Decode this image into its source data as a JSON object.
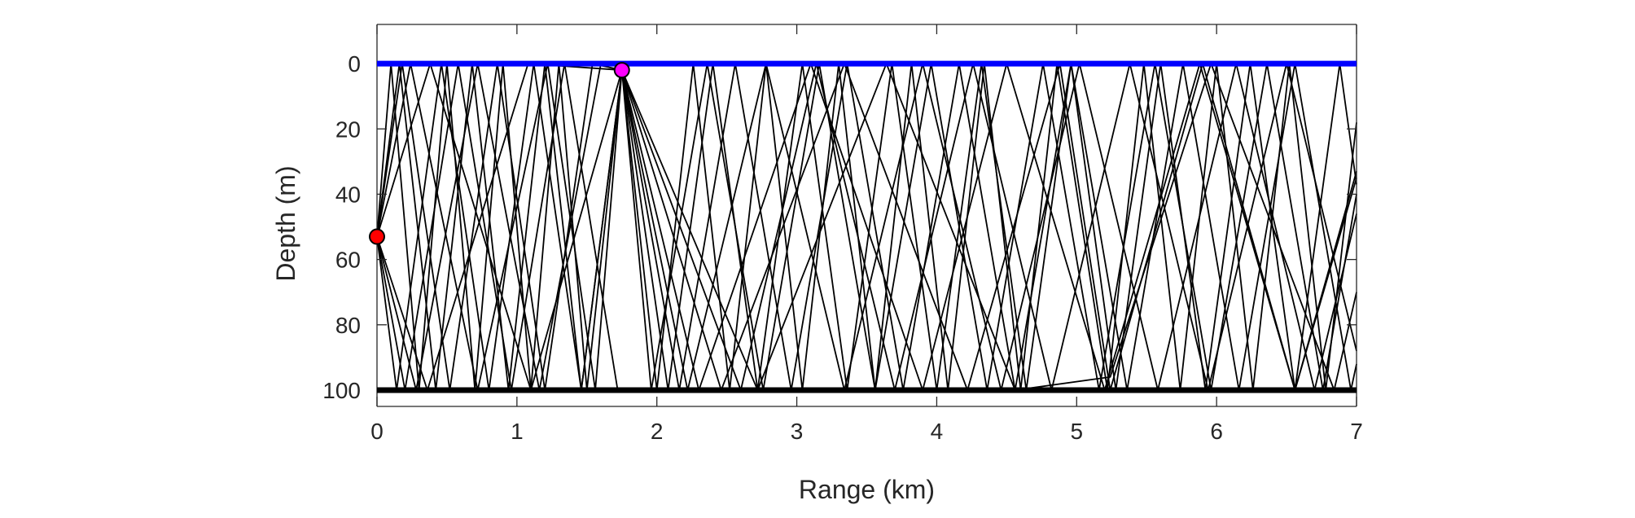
{
  "chart_data": {
    "type": "line",
    "title": "",
    "xlabel": "Range (km)",
    "ylabel": "Depth (m)",
    "xlim": [
      0,
      7
    ],
    "ylim": [
      -12,
      105
    ],
    "y_reversed": true,
    "grid": false,
    "x_ticks": [
      0,
      1,
      2,
      3,
      4,
      5,
      6,
      7
    ],
    "x_tick_labels": [
      "0",
      "1",
      "2",
      "3",
      "4",
      "5",
      "6",
      "7"
    ],
    "y_ticks": [
      0,
      20,
      40,
      60,
      80,
      100
    ],
    "y_tick_labels": [
      "0",
      "20",
      "40",
      "60",
      "80",
      "100"
    ],
    "colors": {
      "surface": "#0000ff",
      "bottom": "#000000",
      "rays": "#000000",
      "source_marker": "#ff0000",
      "receiver_marker": "#ff00ff"
    },
    "surface_depth": 0,
    "bottom_depth": 100,
    "source": {
      "range": 0,
      "depth": 53
    },
    "receiver": {
      "range": 1.75,
      "depth": 2
    },
    "ray_segments_1": [
      [
        [
          0,
          53
        ],
        [
          0.16,
          0
        ],
        [
          0.42,
          100
        ],
        [
          0.68,
          0
        ],
        [
          0.94,
          100
        ],
        [
          1.2,
          0
        ],
        [
          1.46,
          100
        ],
        [
          1.75,
          2
        ]
      ],
      [
        [
          0,
          53
        ],
        [
          0.2,
          100
        ],
        [
          0.58,
          0
        ],
        [
          0.96,
          100
        ],
        [
          1.34,
          0
        ],
        [
          1.72,
          100
        ]
      ],
      [
        [
          0,
          53
        ],
        [
          0.28,
          100
        ],
        [
          0.72,
          0
        ],
        [
          1.16,
          100
        ],
        [
          1.6,
          0
        ]
      ],
      [
        [
          0,
          53
        ],
        [
          0.1,
          0
        ],
        [
          0.3,
          100
        ],
        [
          0.5,
          0
        ],
        [
          0.7,
          100
        ],
        [
          0.9,
          0
        ],
        [
          1.1,
          100
        ],
        [
          1.3,
          0
        ],
        [
          1.5,
          100
        ],
        [
          1.75,
          2
        ]
      ],
      [
        [
          0,
          53
        ],
        [
          0.38,
          0
        ],
        [
          1.1,
          100
        ],
        [
          1.75,
          2
        ]
      ],
      [
        [
          0,
          53
        ],
        [
          0.24,
          0
        ],
        [
          0.72,
          100
        ],
        [
          1.22,
          0
        ],
        [
          1.56,
          100
        ],
        [
          1.75,
          2
        ]
      ],
      [
        [
          0,
          53
        ],
        [
          0.36,
          100
        ],
        [
          1.08,
          0
        ],
        [
          1.75,
          2
        ]
      ],
      [
        [
          0,
          53
        ],
        [
          0.14,
          100
        ],
        [
          0.46,
          0
        ],
        [
          0.8,
          100
        ],
        [
          1.12,
          0
        ],
        [
          1.46,
          100
        ],
        [
          1.75,
          2
        ]
      ],
      [
        [
          0,
          53
        ],
        [
          0.18,
          0
        ],
        [
          0.52,
          100
        ],
        [
          0.86,
          0
        ],
        [
          1.2,
          100
        ],
        [
          1.54,
          0
        ],
        [
          1.75,
          2
        ]
      ]
    ],
    "ray_segments_2": [
      [
        [
          1.75,
          2
        ],
        [
          2.0,
          100
        ],
        [
          2.26,
          0
        ],
        [
          2.52,
          100
        ],
        [
          2.78,
          0
        ],
        [
          3.04,
          100
        ],
        [
          3.3,
          0
        ],
        [
          3.56,
          100
        ],
        [
          3.82,
          0
        ],
        [
          4.08,
          100
        ],
        [
          4.34,
          0
        ],
        [
          4.6,
          100
        ],
        [
          4.86,
          0
        ],
        [
          5.22,
          100
        ],
        [
          5.48,
          0
        ],
        [
          5.74,
          100
        ],
        [
          6.0,
          0
        ],
        [
          6.26,
          100
        ],
        [
          6.52,
          0
        ],
        [
          6.78,
          100
        ],
        [
          7.0,
          18
        ]
      ],
      [
        [
          1.75,
          2
        ],
        [
          2.08,
          100
        ],
        [
          2.4,
          0
        ],
        [
          2.72,
          100
        ],
        [
          3.04,
          0
        ],
        [
          3.36,
          100
        ],
        [
          3.68,
          0
        ],
        [
          4.0,
          100
        ],
        [
          4.32,
          0
        ],
        [
          4.64,
          100
        ],
        [
          4.96,
          0
        ],
        [
          5.28,
          100
        ],
        [
          5.6,
          0
        ],
        [
          5.92,
          100
        ],
        [
          6.24,
          0
        ],
        [
          6.56,
          100
        ],
        [
          6.88,
          0
        ],
        [
          7.0,
          37
        ]
      ],
      [
        [
          1.75,
          2
        ],
        [
          2.22,
          100
        ],
        [
          2.78,
          0
        ],
        [
          3.34,
          100
        ],
        [
          3.9,
          0
        ],
        [
          4.46,
          100
        ],
        [
          5.02,
          0
        ],
        [
          5.58,
          100
        ],
        [
          6.14,
          0
        ],
        [
          6.7,
          100
        ],
        [
          7.0,
          46
        ]
      ],
      [
        [
          1.75,
          2
        ],
        [
          1.96,
          100
        ],
        [
          2.36,
          0
        ],
        [
          2.76,
          100
        ],
        [
          3.16,
          0
        ],
        [
          3.56,
          100
        ],
        [
          3.96,
          0
        ],
        [
          4.36,
          100
        ],
        [
          4.76,
          0
        ],
        [
          5.16,
          100
        ],
        [
          5.56,
          0
        ],
        [
          5.96,
          100
        ],
        [
          6.36,
          0
        ],
        [
          6.76,
          100
        ],
        [
          7.0,
          40
        ]
      ],
      [
        [
          1.75,
          2
        ],
        [
          2.46,
          100
        ],
        [
          3.34,
          0
        ],
        [
          4.22,
          100
        ],
        [
          4.88,
          0
        ],
        [
          5.24,
          100
        ],
        [
          5.9,
          0
        ],
        [
          6.56,
          100
        ],
        [
          7.0,
          33
        ]
      ],
      [
        [
          1.75,
          2
        ],
        [
          2.3,
          100
        ],
        [
          3.1,
          0
        ],
        [
          3.9,
          100
        ],
        [
          4.5,
          0
        ],
        [
          5.2,
          100
        ],
        [
          5.88,
          0
        ],
        [
          6.56,
          100
        ],
        [
          7.0,
          35
        ]
      ],
      [
        [
          1.75,
          2
        ],
        [
          2.6,
          100
        ],
        [
          3.14,
          0
        ],
        [
          3.7,
          100
        ],
        [
          4.26,
          0
        ],
        [
          4.82,
          100
        ],
        [
          5.38,
          0
        ],
        [
          5.94,
          100
        ],
        [
          6.5,
          0
        ],
        [
          7.0,
          88
        ]
      ],
      [
        [
          1.75,
          2
        ],
        [
          2.16,
          100
        ],
        [
          2.56,
          0
        ],
        [
          2.96,
          100
        ],
        [
          3.36,
          0
        ],
        [
          3.76,
          100
        ],
        [
          4.16,
          0
        ],
        [
          4.56,
          100
        ],
        [
          4.96,
          0
        ],
        [
          5.36,
          100
        ],
        [
          5.76,
          0
        ],
        [
          6.16,
          100
        ],
        [
          6.56,
          0
        ],
        [
          6.96,
          100
        ],
        [
          7.0,
          92
        ]
      ],
      [
        [
          1.75,
          2
        ],
        [
          2.72,
          100
        ],
        [
          3.64,
          0
        ],
        [
          4.56,
          100
        ],
        [
          5.24,
          96
        ],
        [
          5.96,
          0
        ],
        [
          6.84,
          100
        ],
        [
          7.0,
          70
        ]
      ]
    ]
  }
}
